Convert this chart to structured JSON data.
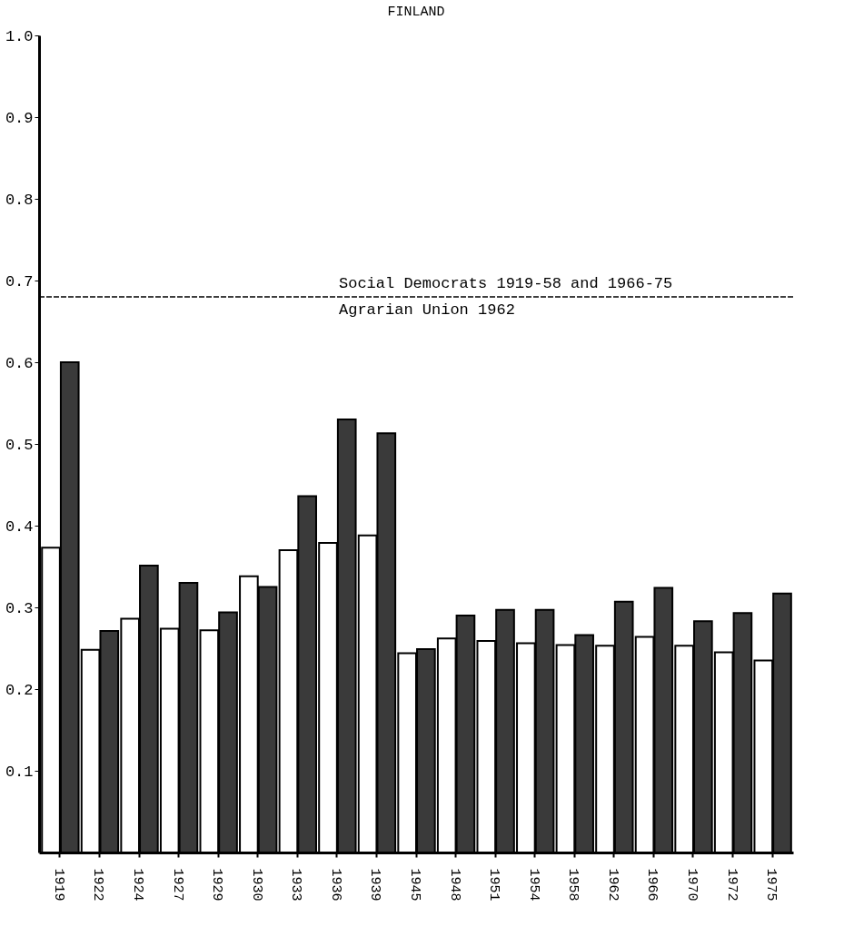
{
  "chart_data": {
    "type": "bar",
    "title": "FINLAND",
    "categories": [
      "1919",
      "1922",
      "1924",
      "1927",
      "1929",
      "1930",
      "1933",
      "1936",
      "1939",
      "1945",
      "1948",
      "1951",
      "1954",
      "1958",
      "1962",
      "1966",
      "1970",
      "1972",
      "1975"
    ],
    "series": [
      {
        "color": "#ffffff",
        "values": [
          0.373,
          0.248,
          0.286,
          0.274,
          0.272,
          0.338,
          0.37,
          0.379,
          0.388,
          0.244,
          0.262,
          0.259,
          0.256,
          0.254,
          0.253,
          0.264,
          0.253,
          0.245,
          0.235
        ]
      },
      {
        "color": "#3a3a3a",
        "values": [
          0.6,
          0.271,
          0.351,
          0.33,
          0.294,
          0.325,
          0.436,
          0.53,
          0.513,
          0.249,
          0.29,
          0.297,
          0.297,
          0.266,
          0.307,
          0.324,
          0.283,
          0.293,
          0.317
        ]
      }
    ],
    "ylim": [
      0,
      1
    ],
    "yticks": [
      0.1,
      0.2,
      0.3,
      0.4,
      0.5,
      0.6,
      0.7,
      0.8,
      0.9,
      {
        "value": 1,
        "label": "1.0"
      }
    ],
    "ref_lines": [
      {
        "axis": "y",
        "value": 0.68,
        "label": "Social Democrats 1919-58 and 1966-75",
        "color": "#000000",
        "line_style": "dashed"
      }
    ],
    "annotations": [
      {
        "text": "Agrarian Union 1962",
        "y": 0.68
      }
    ],
    "grid": false,
    "legend": false
  }
}
